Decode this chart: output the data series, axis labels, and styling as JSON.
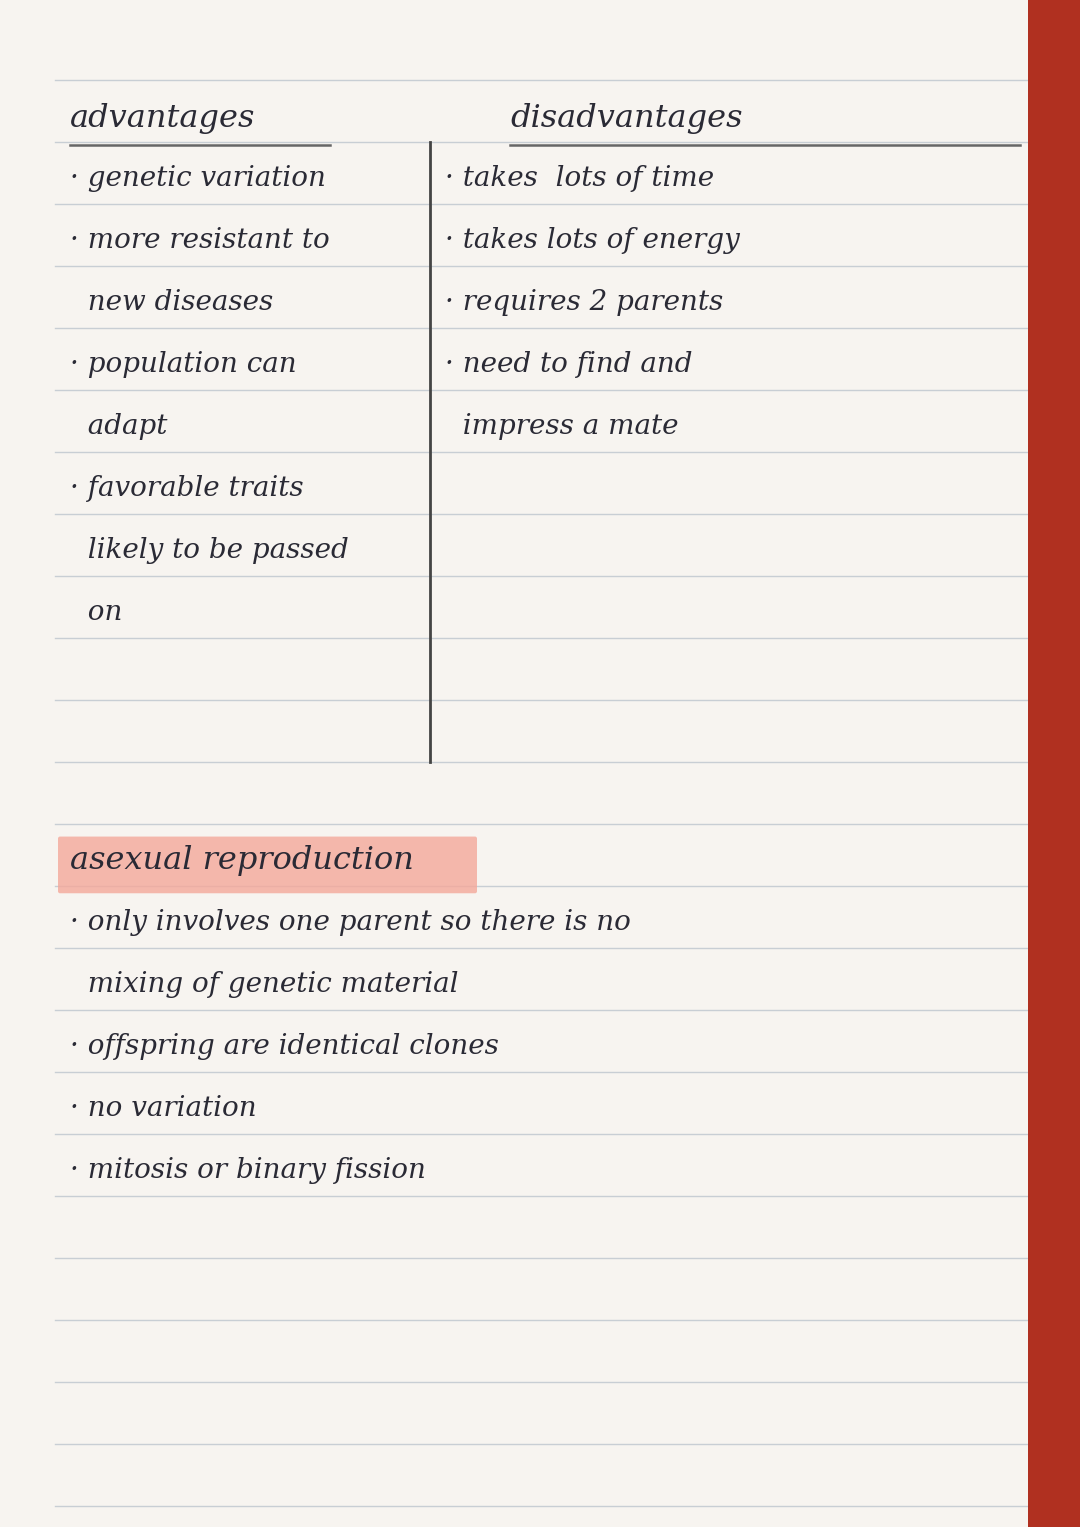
{
  "page_bg": "#f7f4f0",
  "line_color": "#c0c8d0",
  "text_color": "#2a2a35",
  "highlight_color": "#f4a89a",
  "divider_color": "#444444",
  "header_underline": "#666666",
  "advantages_header": "advantages",
  "disadvantages_header": "disadvantages",
  "advantages": [
    "· genetic variation",
    "· more resistant to",
    "  new diseases",
    "· population can",
    "  adapt",
    "· favorable traits",
    "  likely to be passed",
    "  on"
  ],
  "disadvantages": [
    "· takes  lots of time",
    "· takes lots of energy",
    "· requires 2 parents",
    "· need to find and",
    "  impress a mate"
  ],
  "section2_header": "asexual reproduction",
  "section2_lines": [
    "· only involves one parent so there is no",
    "  mixing of genetic material",
    "· offspring are identical clones",
    "· no variation",
    "· mitosis or binary fission"
  ],
  "binding_color": "#b03020",
  "fig_width": 10.8,
  "fig_height": 15.27,
  "dpi": 100
}
